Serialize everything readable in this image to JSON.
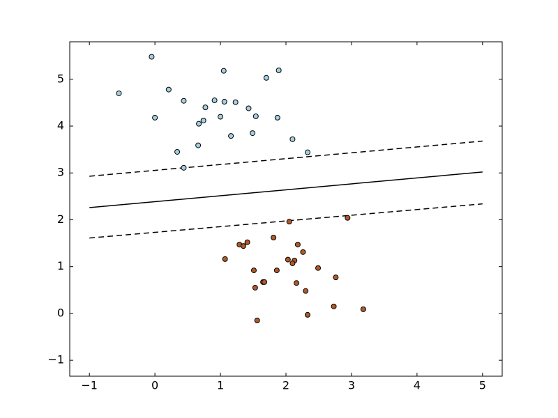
{
  "chart_data": {
    "type": "scatter",
    "xlim": [
      -1.3,
      5.3
    ],
    "ylim": [
      -1.34,
      5.8
    ],
    "xticks": [
      {
        "value": -1,
        "label": "−1"
      },
      0,
      1,
      2,
      3,
      4,
      5
    ],
    "yticks": [
      {
        "value": -1,
        "label": "−1"
      },
      0,
      1,
      2,
      3,
      4,
      5
    ],
    "series": [
      {
        "color": "#a6cee3",
        "x": [
          -0.05,
          -0.55,
          0.21,
          0.0,
          0.44,
          1.05,
          1.7,
          1.89,
          0.77,
          0.91,
          1.06,
          1.23,
          1.43,
          1.0,
          1.54,
          1.87,
          0.74,
          0.67,
          1.49,
          1.16,
          2.1,
          0.66,
          0.34,
          2.33,
          0.44
        ],
        "y": [
          5.48,
          4.7,
          4.78,
          4.18,
          4.54,
          5.18,
          5.03,
          5.19,
          4.4,
          4.55,
          4.52,
          4.51,
          4.38,
          4.2,
          4.21,
          4.18,
          4.12,
          4.05,
          3.85,
          3.79,
          3.72,
          3.59,
          3.45,
          3.44,
          3.11
        ]
      },
      {
        "color": "#b15928",
        "x": [
          2.05,
          2.94,
          1.81,
          1.29,
          1.35,
          1.41,
          2.18,
          2.26,
          1.07,
          2.03,
          2.13,
          2.1,
          2.49,
          1.51,
          1.86,
          2.76,
          1.65,
          1.67,
          2.16,
          1.53,
          2.3,
          2.73,
          3.18,
          1.56,
          2.33
        ],
        "y": [
          1.96,
          2.04,
          1.62,
          1.47,
          1.44,
          1.52,
          1.47,
          1.31,
          1.16,
          1.15,
          1.13,
          1.07,
          0.97,
          0.92,
          0.92,
          0.77,
          0.67,
          0.67,
          0.65,
          0.55,
          0.48,
          0.15,
          0.09,
          -0.15,
          -0.03
        ]
      }
    ],
    "lines": [
      {
        "x": [
          -1,
          5
        ],
        "y": [
          2.26,
          3.02
        ],
        "style": "solid",
        "color": "#000000"
      },
      {
        "x": [
          -1,
          5
        ],
        "y": [
          2.93,
          3.68
        ],
        "style": "dashed",
        "color": "#000000"
      },
      {
        "x": [
          -1,
          5
        ],
        "y": [
          1.61,
          2.34
        ],
        "style": "dashed",
        "color": "#000000"
      }
    ]
  }
}
